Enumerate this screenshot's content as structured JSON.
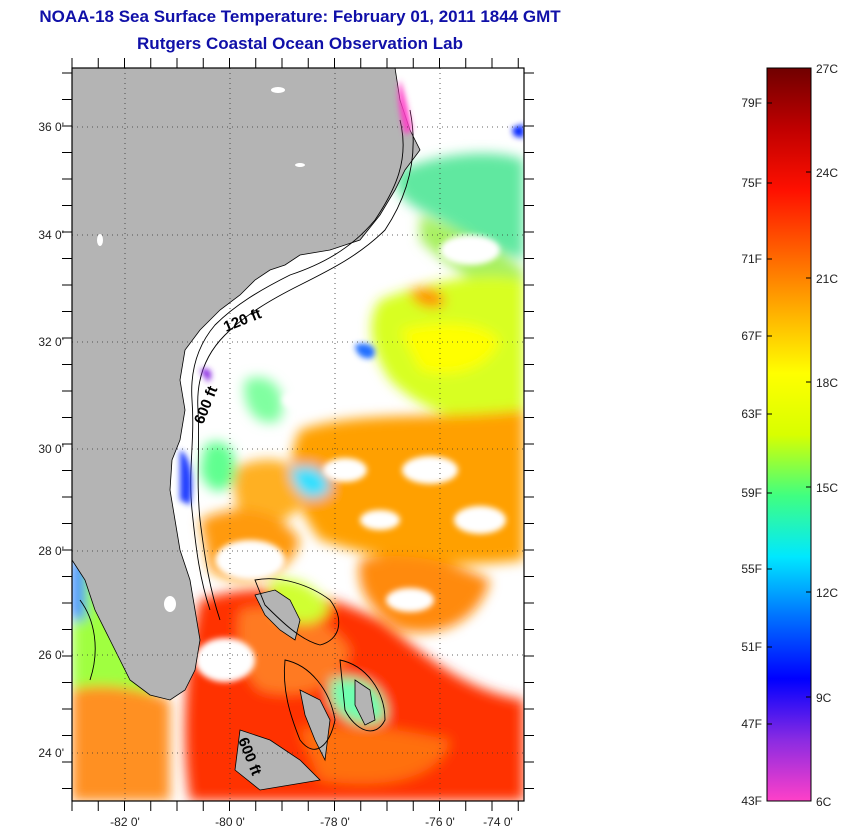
{
  "header": {
    "title": "NOAA-18 Sea Surface Temperature:  February 01, 2011 1844 GMT",
    "subtitle": "Rutgers Coastal Ocean Observation Lab"
  },
  "map": {
    "lon_labels": [
      "-82 0'",
      "-80 0'",
      "-78 0'",
      "-76 0'",
      "-74 0'"
    ],
    "lat_labels": [
      "36 0'",
      "34 0'",
      "32 0'",
      "30 0'",
      "28 0'",
      "26 0'",
      "24 0'"
    ],
    "isobath_labels": [
      "120 ft",
      "600 ft",
      "600 ft"
    ],
    "colors": {
      "land": "#b4b4b4",
      "cloud": "#ffffff",
      "frame": "#000000"
    }
  },
  "colorbar": {
    "f_labels": [
      "79F",
      "75F",
      "71F",
      "67F",
      "63F",
      "59F",
      "55F",
      "51F",
      "47F",
      "43F"
    ],
    "c_labels": [
      "27C",
      "24C",
      "21C",
      "18C",
      "15C",
      "12C",
      "9C",
      "6C"
    ],
    "stops": [
      {
        "c": "#ff40c8"
      },
      {
        "c": "#8a2be2"
      },
      {
        "c": "#0000ff"
      },
      {
        "c": "#0070ff"
      },
      {
        "c": "#00e8ff"
      },
      {
        "c": "#40ff80"
      },
      {
        "c": "#d8ff00"
      },
      {
        "c": "#ffff00"
      },
      {
        "c": "#ffb000"
      },
      {
        "c": "#ff6000"
      },
      {
        "c": "#ff1000"
      },
      {
        "c": "#c00000"
      },
      {
        "c": "#700000"
      }
    ]
  }
}
